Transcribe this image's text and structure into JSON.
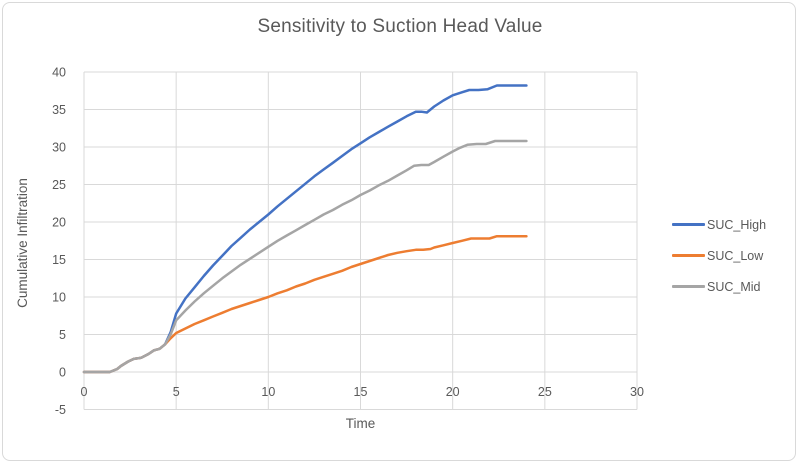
{
  "window": {
    "background": "#ffffff",
    "border_color": "#d9d9d9"
  },
  "chart_data": {
    "type": "line",
    "title": "Sensitivity to Suction Head Value",
    "xlabel": "Time",
    "ylabel": "Cumulative Infiltration",
    "xlim": [
      0,
      30
    ],
    "ylim": [
      -5,
      40
    ],
    "x_ticks": [
      0,
      5,
      10,
      15,
      20,
      25,
      30
    ],
    "y_ticks": [
      -5,
      0,
      5,
      10,
      15,
      20,
      25,
      30,
      35,
      40
    ],
    "grid": true,
    "legend_position": "right",
    "styles": {
      "gridline_color": "#d9d9d9",
      "tick_text_color": "#595959",
      "title_color": "#595959",
      "line_width": 2.5
    },
    "series": [
      {
        "name": "SUC_High",
        "color": "#4472C4",
        "points": [
          [
            0,
            0
          ],
          [
            0.5,
            0
          ],
          [
            1,
            0
          ],
          [
            1.4,
            0
          ],
          [
            1.8,
            0.4
          ],
          [
            2,
            0.8
          ],
          [
            2.4,
            1.4
          ],
          [
            2.7,
            1.75
          ],
          [
            3.1,
            1.9
          ],
          [
            3.5,
            2.4
          ],
          [
            3.8,
            2.9
          ],
          [
            4.1,
            3.1
          ],
          [
            4.4,
            3.7
          ],
          [
            4.7,
            5.3
          ],
          [
            5,
            7.8
          ],
          [
            5.5,
            9.8
          ],
          [
            6,
            11.3
          ],
          [
            6.5,
            12.8
          ],
          [
            7,
            14.2
          ],
          [
            7.5,
            15.5
          ],
          [
            8,
            16.8
          ],
          [
            8.5,
            17.9
          ],
          [
            9,
            19
          ],
          [
            9.5,
            20
          ],
          [
            10,
            21
          ],
          [
            10.5,
            22.1
          ],
          [
            11,
            23.1
          ],
          [
            11.5,
            24.1
          ],
          [
            12,
            25.1
          ],
          [
            12.5,
            26.1
          ],
          [
            13,
            27
          ],
          [
            13.5,
            27.9
          ],
          [
            14,
            28.8
          ],
          [
            14.5,
            29.7
          ],
          [
            15,
            30.5
          ],
          [
            15.5,
            31.3
          ],
          [
            16,
            32
          ],
          [
            16.5,
            32.7
          ],
          [
            17,
            33.4
          ],
          [
            17.5,
            34.1
          ],
          [
            18,
            34.7
          ],
          [
            18.3,
            34.7
          ],
          [
            18.6,
            34.6
          ],
          [
            19,
            35.4
          ],
          [
            19.5,
            36.2
          ],
          [
            20,
            36.9
          ],
          [
            20.5,
            37.3
          ],
          [
            20.9,
            37.6
          ],
          [
            21.4,
            37.6
          ],
          [
            21.9,
            37.7
          ],
          [
            22.4,
            38.2
          ],
          [
            23,
            38.2
          ],
          [
            23.5,
            38.2
          ],
          [
            24,
            38.2
          ]
        ]
      },
      {
        "name": "SUC_Low",
        "color": "#ED7D31",
        "points": [
          [
            0,
            0
          ],
          [
            0.5,
            0
          ],
          [
            1,
            0
          ],
          [
            1.4,
            0
          ],
          [
            1.8,
            0.4
          ],
          [
            2,
            0.8
          ],
          [
            2.4,
            1.4
          ],
          [
            2.7,
            1.75
          ],
          [
            3.1,
            1.9
          ],
          [
            3.5,
            2.4
          ],
          [
            3.8,
            2.9
          ],
          [
            4.1,
            3.1
          ],
          [
            4.4,
            3.7
          ],
          [
            4.7,
            4.5
          ],
          [
            5,
            5.2
          ],
          [
            5.5,
            5.8
          ],
          [
            6,
            6.4
          ],
          [
            6.5,
            6.9
          ],
          [
            7,
            7.4
          ],
          [
            7.5,
            7.9
          ],
          [
            8,
            8.4
          ],
          [
            8.5,
            8.8
          ],
          [
            9,
            9.2
          ],
          [
            9.5,
            9.6
          ],
          [
            10,
            10
          ],
          [
            10.5,
            10.5
          ],
          [
            11,
            10.9
          ],
          [
            11.5,
            11.4
          ],
          [
            12,
            11.8
          ],
          [
            12.5,
            12.3
          ],
          [
            13,
            12.7
          ],
          [
            13.5,
            13.1
          ],
          [
            14,
            13.5
          ],
          [
            14.5,
            14
          ],
          [
            15,
            14.4
          ],
          [
            15.5,
            14.8
          ],
          [
            16,
            15.2
          ],
          [
            16.5,
            15.6
          ],
          [
            17,
            15.9
          ],
          [
            17.5,
            16.1
          ],
          [
            18,
            16.3
          ],
          [
            18.4,
            16.3
          ],
          [
            18.8,
            16.4
          ],
          [
            19,
            16.6
          ],
          [
            19.5,
            16.9
          ],
          [
            20,
            17.2
          ],
          [
            20.5,
            17.5
          ],
          [
            21,
            17.8
          ],
          [
            21.5,
            17.8
          ],
          [
            22,
            17.8
          ],
          [
            22.4,
            18.1
          ],
          [
            23,
            18.1
          ],
          [
            23.5,
            18.1
          ],
          [
            24,
            18.1
          ]
        ]
      },
      {
        "name": "SUC_Mid",
        "color": "#A5A5A5",
        "points": [
          [
            0,
            0
          ],
          [
            0.5,
            0
          ],
          [
            1,
            0
          ],
          [
            1.4,
            0
          ],
          [
            1.8,
            0.4
          ],
          [
            2,
            0.8
          ],
          [
            2.4,
            1.4
          ],
          [
            2.7,
            1.75
          ],
          [
            3.1,
            1.9
          ],
          [
            3.5,
            2.4
          ],
          [
            3.8,
            2.9
          ],
          [
            4.1,
            3.1
          ],
          [
            4.4,
            3.7
          ],
          [
            4.7,
            5
          ],
          [
            5,
            6.9
          ],
          [
            5.5,
            8.2
          ],
          [
            6,
            9.4
          ],
          [
            6.5,
            10.5
          ],
          [
            7,
            11.5
          ],
          [
            7.5,
            12.5
          ],
          [
            8,
            13.4
          ],
          [
            8.5,
            14.3
          ],
          [
            9,
            15.1
          ],
          [
            9.5,
            15.9
          ],
          [
            10,
            16.7
          ],
          [
            10.5,
            17.5
          ],
          [
            11,
            18.2
          ],
          [
            11.5,
            18.9
          ],
          [
            12,
            19.6
          ],
          [
            12.5,
            20.3
          ],
          [
            13,
            21
          ],
          [
            13.5,
            21.6
          ],
          [
            14,
            22.3
          ],
          [
            14.5,
            22.9
          ],
          [
            15,
            23.6
          ],
          [
            15.5,
            24.2
          ],
          [
            16,
            24.9
          ],
          [
            16.5,
            25.5
          ],
          [
            17,
            26.2
          ],
          [
            17.5,
            26.9
          ],
          [
            17.9,
            27.5
          ],
          [
            18.3,
            27.6
          ],
          [
            18.7,
            27.6
          ],
          [
            19,
            28
          ],
          [
            19.5,
            28.7
          ],
          [
            20,
            29.4
          ],
          [
            20.4,
            29.9
          ],
          [
            20.8,
            30.3
          ],
          [
            21.3,
            30.4
          ],
          [
            21.8,
            30.4
          ],
          [
            22.3,
            30.8
          ],
          [
            23,
            30.8
          ],
          [
            23.5,
            30.8
          ],
          [
            24,
            30.8
          ]
        ]
      }
    ]
  }
}
